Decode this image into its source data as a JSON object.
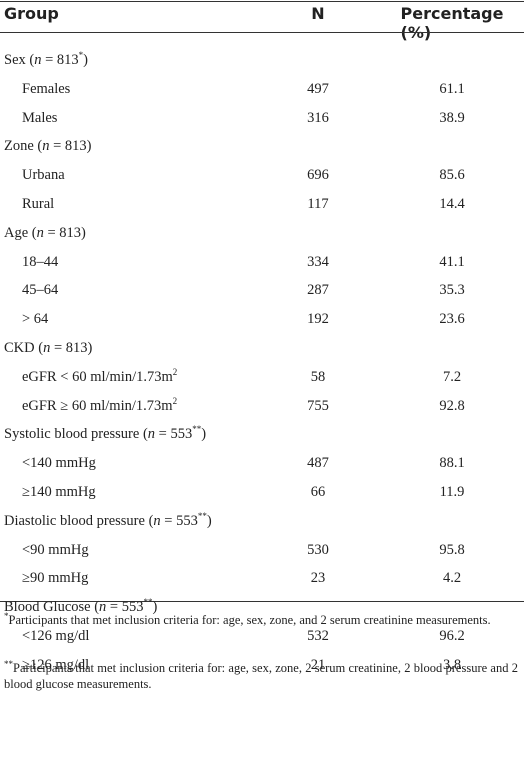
{
  "table": {
    "header": [
      "Group",
      "N",
      "Percentage (%)"
    ],
    "rows": [
      {
        "group": [
          {
            "text": "Sex ("
          },
          {
            "text": "n",
            "style": "italic"
          },
          {
            "text": " = 813"
          },
          {
            "text": "*",
            "style": "sup"
          },
          {
            "text": ")"
          }
        ]
      },
      {
        "group": [
          {
            "text": "Females"
          }
        ],
        "n": 497,
        "pct": 61.1
      },
      {
        "group": [
          {
            "text": "Males"
          }
        ],
        "n": 316,
        "pct": 38.9
      },
      {
        "group": [
          {
            "text": "Zone ("
          },
          {
            "text": "n",
            "style": "italic"
          },
          {
            "text": " = 813)"
          }
        ]
      },
      {
        "group": [
          {
            "text": "Urbana"
          }
        ],
        "n": 696,
        "pct": 85.6
      },
      {
        "group": [
          {
            "text": "Rural"
          }
        ],
        "n": 117,
        "pct": 14.4
      },
      {
        "group": [
          {
            "text": "Age ("
          },
          {
            "text": "n",
            "style": "italic"
          },
          {
            "text": " = 813)"
          }
        ]
      },
      {
        "group": [
          {
            "text": "18–44"
          }
        ],
        "n": 334,
        "pct": 41.1
      },
      {
        "group": [
          {
            "text": "45–64"
          }
        ],
        "n": 287,
        "pct": 35.3
      },
      {
        "group": [
          {
            "text": "> 64"
          }
        ],
        "n": 192,
        "pct": 23.6
      },
      {
        "group": [
          {
            "text": "CKD ("
          },
          {
            "text": "n",
            "style": "italic"
          },
          {
            "text": " = 813)"
          }
        ]
      },
      {
        "group": [
          {
            "text": "eGFR < 60 ml/min/1.73m"
          },
          {
            "text": "2",
            "style": "sup"
          }
        ],
        "n": 58,
        "pct": 7.2
      },
      {
        "group": [
          {
            "text": "eGFR ≥ 60 ml/min/1.73m"
          },
          {
            "text": "2",
            "style": "sup"
          }
        ],
        "n": 755,
        "pct": 92.8
      },
      {
        "group": [
          {
            "text": "Systolic blood pressure ("
          },
          {
            "text": "n",
            "style": "italic"
          },
          {
            "text": " = 553"
          },
          {
            "text": "**",
            "style": "sup"
          },
          {
            "text": ")"
          }
        ]
      },
      {
        "group": [
          {
            "text": "<140 mmHg"
          }
        ],
        "n": 487,
        "pct": 88.1
      },
      {
        "group": [
          {
            "text": "≥140 mmHg"
          }
        ],
        "n": 66,
        "pct": 11.9
      },
      {
        "group": [
          {
            "text": "Diastolic blood pressure ("
          },
          {
            "text": "n",
            "style": "italic"
          },
          {
            "text": " = 553"
          },
          {
            "text": "**",
            "style": "sup"
          },
          {
            "text": ")"
          }
        ]
      },
      {
        "group": [
          {
            "text": "<90 mmHg"
          }
        ],
        "n": 530,
        "pct": 95.8
      },
      {
        "group": [
          {
            "text": "≥90 mmHg"
          }
        ],
        "n": 23,
        "pct": 4.2
      },
      {
        "group": [
          {
            "text": "Blood Glucose ("
          },
          {
            "text": "n",
            "style": "italic"
          },
          {
            "text": " = 553"
          },
          {
            "text": "**",
            "style": "sup"
          },
          {
            "text": ")"
          }
        ]
      },
      {
        "group": [
          {
            "text": "<126 mg/dl"
          }
        ],
        "n": 532,
        "pct": 96.2
      },
      {
        "group": [
          {
            "text": "≥126 mg/dl"
          }
        ],
        "n": 21,
        "pct": 3.8
      }
    ]
  },
  "footnotes": [
    [
      {
        "text": "*",
        "style": "sup"
      },
      {
        "text": "Participants that met inclusion criteria for: age, sex, zone, and 2 serum creatinine measurements."
      }
    ],
    [
      {
        "text": "**",
        "style": "sup"
      },
      {
        "text": "Participants that met inclusion criteria for: age, sex, zone, 2 serum creatinine, 2 blood pressure and 2 blood glucose measurements."
      }
    ]
  ]
}
